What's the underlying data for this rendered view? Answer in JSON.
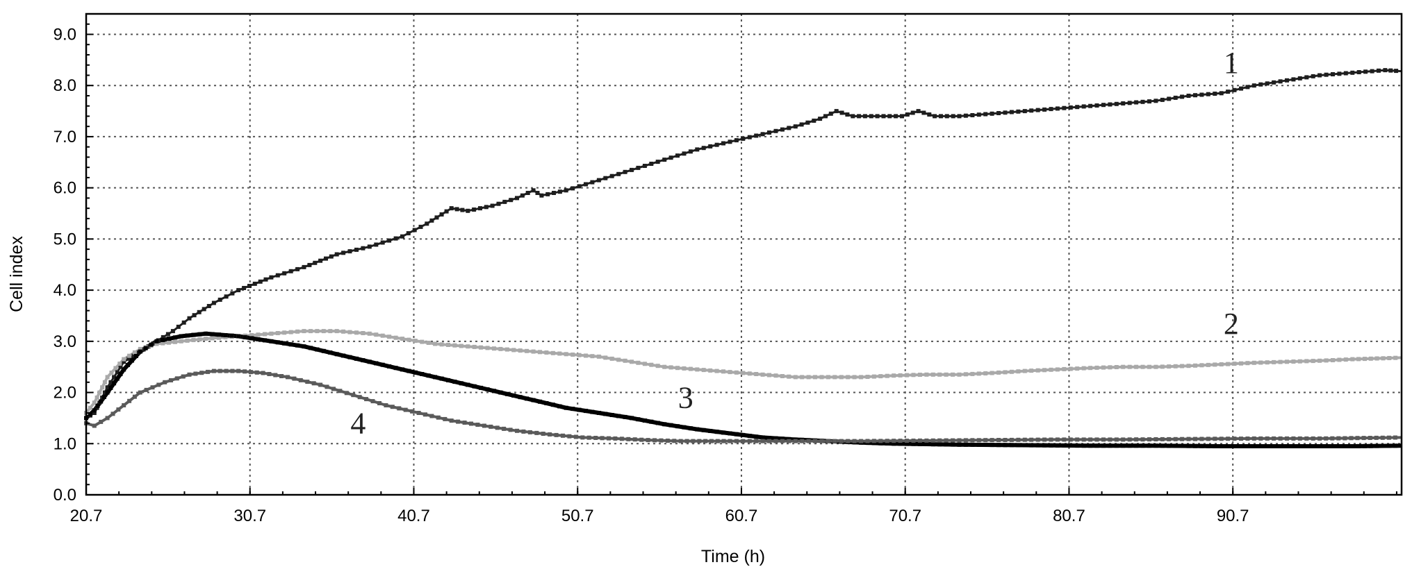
{
  "chart_data": {
    "type": "line",
    "title": "",
    "xlabel": "Time (h)",
    "ylabel": "Cell index",
    "xlim": [
      20.7,
      101.0
    ],
    "ylim": [
      0.0,
      9.4
    ],
    "x_ticks": [
      "20.7",
      "30.7",
      "40.7",
      "50.7",
      "60.7",
      "70.7",
      "80.7",
      "90.7"
    ],
    "y_ticks": [
      "0.0",
      "1.0",
      "2.0",
      "3.0",
      "4.0",
      "5.0",
      "6.0",
      "7.0",
      "8.0",
      "9.0"
    ],
    "grid": true,
    "legend": "none",
    "series": [
      {
        "label": "1",
        "color": "#1e1e1e",
        "points": [
          [
            20.7,
            1.5
          ],
          [
            21.2,
            1.6
          ],
          [
            22.0,
            2.1
          ],
          [
            23.0,
            2.6
          ],
          [
            24.5,
            2.9
          ],
          [
            26.0,
            3.2
          ],
          [
            27.0,
            3.45
          ],
          [
            28.5,
            3.75
          ],
          [
            30.0,
            4.0
          ],
          [
            32.0,
            4.25
          ],
          [
            34.0,
            4.45
          ],
          [
            36.0,
            4.7
          ],
          [
            38.0,
            4.85
          ],
          [
            40.0,
            5.05
          ],
          [
            41.5,
            5.3
          ],
          [
            43.0,
            5.6
          ],
          [
            44.0,
            5.55
          ],
          [
            45.5,
            5.65
          ],
          [
            47.0,
            5.8
          ],
          [
            48.0,
            5.95
          ],
          [
            48.5,
            5.85
          ],
          [
            50.0,
            5.95
          ],
          [
            52.0,
            6.15
          ],
          [
            54.0,
            6.35
          ],
          [
            56.0,
            6.55
          ],
          [
            58.0,
            6.75
          ],
          [
            60.0,
            6.9
          ],
          [
            62.0,
            7.05
          ],
          [
            64.0,
            7.2
          ],
          [
            65.5,
            7.35
          ],
          [
            66.5,
            7.5
          ],
          [
            67.5,
            7.4
          ],
          [
            69.0,
            7.4
          ],
          [
            70.5,
            7.4
          ],
          [
            71.5,
            7.5
          ],
          [
            72.5,
            7.4
          ],
          [
            74.0,
            7.4
          ],
          [
            76.0,
            7.45
          ],
          [
            78.0,
            7.5
          ],
          [
            80.0,
            7.55
          ],
          [
            82.0,
            7.6
          ],
          [
            84.0,
            7.65
          ],
          [
            86.0,
            7.7
          ],
          [
            88.0,
            7.8
          ],
          [
            90.0,
            7.85
          ],
          [
            92.0,
            8.0
          ],
          [
            94.0,
            8.1
          ],
          [
            96.0,
            8.2
          ],
          [
            98.0,
            8.25
          ],
          [
            100.0,
            8.3
          ],
          [
            101.0,
            8.28
          ]
        ]
      },
      {
        "label": "2",
        "color": "#a9a9a9",
        "points": [
          [
            20.7,
            1.6
          ],
          [
            21.2,
            1.8
          ],
          [
            22.0,
            2.3
          ],
          [
            23.0,
            2.65
          ],
          [
            24.0,
            2.85
          ],
          [
            25.0,
            2.95
          ],
          [
            26.5,
            3.0
          ],
          [
            28.0,
            3.05
          ],
          [
            30.0,
            3.1
          ],
          [
            32.0,
            3.15
          ],
          [
            34.0,
            3.2
          ],
          [
            36.0,
            3.2
          ],
          [
            38.0,
            3.15
          ],
          [
            40.0,
            3.05
          ],
          [
            42.0,
            2.95
          ],
          [
            44.0,
            2.9
          ],
          [
            46.0,
            2.85
          ],
          [
            48.0,
            2.8
          ],
          [
            50.0,
            2.75
          ],
          [
            52.0,
            2.7
          ],
          [
            54.0,
            2.6
          ],
          [
            56.0,
            2.5
          ],
          [
            58.0,
            2.45
          ],
          [
            60.0,
            2.4
          ],
          [
            62.0,
            2.35
          ],
          [
            64.0,
            2.3
          ],
          [
            66.0,
            2.3
          ],
          [
            68.0,
            2.3
          ],
          [
            70.0,
            2.33
          ],
          [
            72.0,
            2.35
          ],
          [
            74.0,
            2.35
          ],
          [
            76.0,
            2.38
          ],
          [
            78.0,
            2.42
          ],
          [
            80.0,
            2.45
          ],
          [
            82.0,
            2.48
          ],
          [
            84.0,
            2.5
          ],
          [
            86.0,
            2.5
          ],
          [
            88.0,
            2.52
          ],
          [
            90.0,
            2.55
          ],
          [
            92.0,
            2.58
          ],
          [
            94.0,
            2.6
          ],
          [
            96.0,
            2.62
          ],
          [
            98.0,
            2.65
          ],
          [
            101.0,
            2.68
          ]
        ]
      },
      {
        "label": "3",
        "color": "#000000",
        "points": [
          [
            20.7,
            1.5
          ],
          [
            21.2,
            1.65
          ],
          [
            22.0,
            2.0
          ],
          [
            23.0,
            2.45
          ],
          [
            24.0,
            2.8
          ],
          [
            25.0,
            3.0
          ],
          [
            26.5,
            3.1
          ],
          [
            28.0,
            3.15
          ],
          [
            30.0,
            3.1
          ],
          [
            32.0,
            3.0
          ],
          [
            34.0,
            2.9
          ],
          [
            36.0,
            2.75
          ],
          [
            38.0,
            2.6
          ],
          [
            40.0,
            2.45
          ],
          [
            42.0,
            2.3
          ],
          [
            44.0,
            2.15
          ],
          [
            46.0,
            2.0
          ],
          [
            48.0,
            1.85
          ],
          [
            50.0,
            1.7
          ],
          [
            52.0,
            1.6
          ],
          [
            54.0,
            1.5
          ],
          [
            56.0,
            1.38
          ],
          [
            58.0,
            1.28
          ],
          [
            60.0,
            1.2
          ],
          [
            62.0,
            1.12
          ],
          [
            64.0,
            1.08
          ],
          [
            66.0,
            1.05
          ],
          [
            68.0,
            1.02
          ],
          [
            70.0,
            1.0
          ],
          [
            74.0,
            0.98
          ],
          [
            78.0,
            0.97
          ],
          [
            82.0,
            0.96
          ],
          [
            86.0,
            0.96
          ],
          [
            90.0,
            0.95
          ],
          [
            94.0,
            0.95
          ],
          [
            98.0,
            0.95
          ],
          [
            101.0,
            0.96
          ]
        ]
      },
      {
        "label": "4",
        "color": "#5a5a5a",
        "points": [
          [
            20.7,
            1.4
          ],
          [
            21.2,
            1.35
          ],
          [
            22.0,
            1.5
          ],
          [
            23.0,
            1.75
          ],
          [
            24.0,
            2.0
          ],
          [
            25.5,
            2.2
          ],
          [
            27.0,
            2.35
          ],
          [
            28.5,
            2.42
          ],
          [
            30.0,
            2.42
          ],
          [
            31.5,
            2.38
          ],
          [
            33.0,
            2.3
          ],
          [
            35.0,
            2.15
          ],
          [
            37.0,
            1.95
          ],
          [
            39.0,
            1.75
          ],
          [
            41.0,
            1.6
          ],
          [
            43.0,
            1.45
          ],
          [
            45.0,
            1.35
          ],
          [
            47.0,
            1.25
          ],
          [
            49.0,
            1.18
          ],
          [
            51.0,
            1.12
          ],
          [
            53.0,
            1.1
          ],
          [
            55.0,
            1.07
          ],
          [
            57.0,
            1.05
          ],
          [
            60.0,
            1.05
          ],
          [
            64.0,
            1.05
          ],
          [
            68.0,
            1.05
          ],
          [
            72.0,
            1.06
          ],
          [
            76.0,
            1.07
          ],
          [
            80.0,
            1.08
          ],
          [
            84.0,
            1.08
          ],
          [
            88.0,
            1.09
          ],
          [
            92.0,
            1.1
          ],
          [
            96.0,
            1.1
          ],
          [
            101.0,
            1.12
          ]
        ]
      }
    ],
    "annotations": [
      {
        "text": "1",
        "x": 90.6,
        "y": 8.25
      },
      {
        "text": "2",
        "x": 90.6,
        "y": 3.15
      },
      {
        "text": "3",
        "x": 57.3,
        "y": 1.7
      },
      {
        "text": "4",
        "x": 37.3,
        "y": 1.2
      }
    ]
  }
}
